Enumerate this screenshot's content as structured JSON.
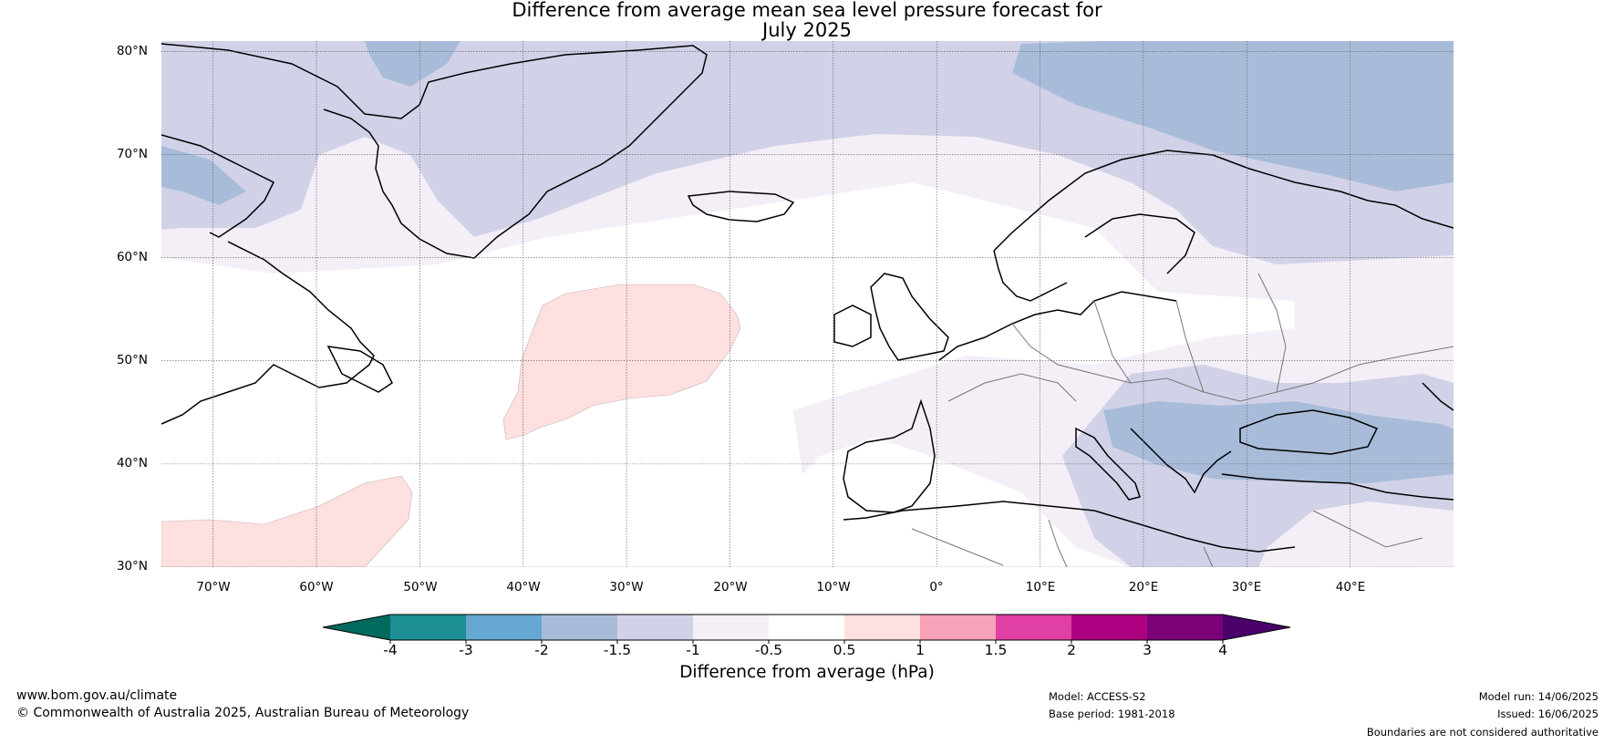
{
  "title": {
    "line1": "Difference from average mean sea level pressure forecast for",
    "line2": "July 2025"
  },
  "map": {
    "lat_labels": [
      "80°N",
      "70°N",
      "60°N",
      "50°N",
      "40°N",
      "30°N"
    ],
    "lon_labels": [
      "70°W",
      "60°W",
      "50°W",
      "40°W",
      "30°W",
      "20°W",
      "10°W",
      "0°",
      "10°E",
      "20°E",
      "30°E",
      "40°E"
    ],
    "extent": {
      "lon": [
        -75,
        50
      ],
      "lat": [
        30,
        81
      ]
    },
    "gridlines": true
  },
  "colorbar": {
    "label": "Difference from average (hPa)",
    "ticks": [
      "-4",
      "-3",
      "-2",
      "-1.5",
      "-1",
      "-0.5",
      "0.5",
      "1",
      "1.5",
      "2",
      "3",
      "4"
    ],
    "colors": [
      "#1b8f93",
      "#66a8d1",
      "#a8bcda",
      "#d1d2e7",
      "#f4eef7",
      "#ffffff",
      "#fde0df",
      "#f8a2b9",
      "#e03fa3",
      "#ae0181",
      "#7a0177"
    ],
    "under_color": "#006a5d",
    "over_color": "#49006a"
  },
  "footer": {
    "website": "www.bom.gov.au/climate",
    "copyright": "© Commonwealth of Australia 2025, Australian Bureau of Meteorology",
    "model": "Model: ACCESS-S2",
    "base_period": "Base period: 1981-2018",
    "model_run": "Model run: 14/06/2025",
    "issued": "Issued: 16/06/2025",
    "disclaimer": "Boundaries are not considered authoritative"
  }
}
